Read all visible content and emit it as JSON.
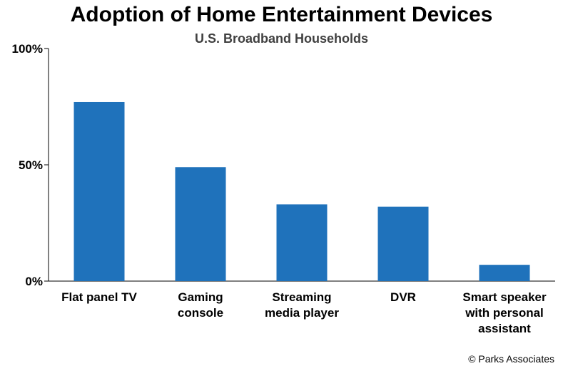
{
  "chart_data": {
    "type": "bar",
    "title": "Adoption of Home Entertainment Devices",
    "subtitle": "U.S. Broadband Households",
    "categories": [
      [
        "Flat panel TV"
      ],
      [
        "Gaming",
        "console"
      ],
      [
        "Streaming",
        "media player"
      ],
      [
        "DVR"
      ],
      [
        "Smart speaker",
        "with personal",
        "assistant"
      ]
    ],
    "values": [
      77,
      49,
      33,
      32,
      7
    ],
    "value_unit": "%",
    "ylim": [
      0,
      100
    ],
    "yticks": [
      0,
      50,
      100
    ],
    "ytick_labels": [
      "0%",
      "50%",
      "100%"
    ],
    "grid": false,
    "bar_color": "#1f72bb"
  },
  "credit": "© Parks Associates"
}
